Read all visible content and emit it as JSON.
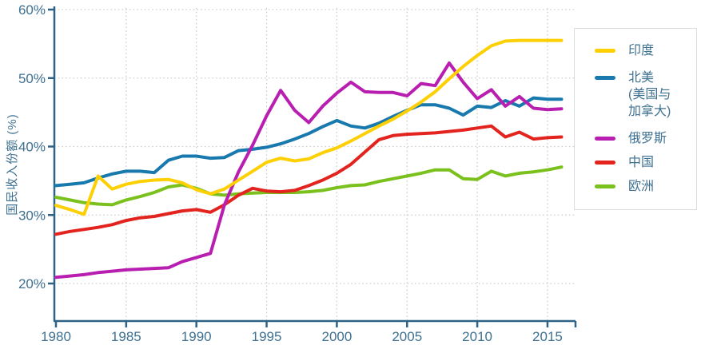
{
  "chart": {
    "y_axis_title": "国民收入份额 (%)",
    "y_ticks": [
      {
        "label": "60%",
        "value": 60
      },
      {
        "label": "50%",
        "value": 50
      },
      {
        "label": "40%",
        "value": 40
      },
      {
        "label": "30%",
        "value": 30
      },
      {
        "label": "20%",
        "value": 20
      }
    ],
    "x_ticks": [
      {
        "label": "1980",
        "value": 1980
      },
      {
        "label": "1985",
        "value": 1985
      },
      {
        "label": "1990",
        "value": 1990
      },
      {
        "label": "1995",
        "value": 1995
      },
      {
        "label": "2000",
        "value": 2000
      },
      {
        "label": "2005",
        "value": 2005
      },
      {
        "label": "2010",
        "value": 2010
      },
      {
        "label": "2015",
        "value": 2015
      }
    ]
  },
  "legend": {
    "items": [
      {
        "label": "印度",
        "slug": "india"
      },
      {
        "label": "北美\n(美国与\n加拿大)",
        "slug": "north-america"
      },
      {
        "label": "俄罗斯",
        "slug": "russia"
      },
      {
        "label": "中国",
        "slug": "china"
      },
      {
        "label": "欧洲",
        "slug": "europe"
      }
    ]
  },
  "colors": {
    "axis": "#2e6286",
    "text": "#3f7191",
    "grid": "#c8ccce",
    "legend_border": "#dadde0",
    "background": "#ffffff"
  },
  "chart_data": {
    "type": "line",
    "title": "",
    "xlabel": "",
    "ylabel": "国民收入份额 (%)",
    "xlim": [
      1980,
      2016
    ],
    "ylim": [
      15,
      60
    ],
    "grid": "dotted",
    "legend_position": "right",
    "x": [
      1980,
      1981,
      1982,
      1983,
      1984,
      1985,
      1986,
      1987,
      1988,
      1989,
      1990,
      1991,
      1992,
      1993,
      1994,
      1995,
      1996,
      1997,
      1998,
      1999,
      2000,
      2001,
      2002,
      2003,
      2004,
      2005,
      2006,
      2007,
      2008,
      2009,
      2010,
      2011,
      2012,
      2013,
      2014,
      2015,
      2016
    ],
    "series": [
      {
        "name": "印度",
        "slug": "india",
        "color": "#fdd005",
        "values": [
          31.4,
          30.8,
          30.1,
          35.7,
          33.8,
          34.5,
          34.9,
          35.1,
          35.2,
          34.7,
          33.7,
          33.1,
          33.8,
          35.1,
          36.4,
          37.7,
          38.3,
          37.9,
          38.2,
          39.1,
          39.8,
          40.8,
          41.9,
          43.0,
          44.0,
          45.2,
          46.5,
          48.0,
          49.9,
          51.7,
          53.3,
          54.7,
          55.4,
          55.5,
          55.5,
          55.5,
          55.5
        ]
      },
      {
        "name": "北美 (美国与加拿大)",
        "slug": "north-america",
        "color": "#1779ad",
        "values": [
          34.3,
          34.5,
          34.7,
          35.4,
          36.0,
          36.4,
          36.4,
          36.2,
          38.0,
          38.6,
          38.6,
          38.3,
          38.4,
          39.4,
          39.6,
          39.9,
          40.4,
          41.1,
          41.9,
          42.9,
          43.8,
          43.0,
          42.7,
          43.4,
          44.4,
          45.3,
          46.1,
          46.1,
          45.6,
          44.6,
          45.9,
          45.7,
          46.7,
          45.9,
          47.1,
          46.9,
          46.9
        ]
      },
      {
        "name": "俄罗斯",
        "slug": "russia",
        "color": "#b81fb0",
        "values": [
          20.9,
          21.1,
          21.3,
          21.6,
          21.8,
          22.0,
          22.1,
          22.2,
          22.3,
          23.2,
          23.8,
          24.4,
          31.5,
          36.3,
          40.2,
          44.5,
          48.2,
          45.3,
          43.5,
          45.9,
          47.8,
          49.4,
          48.0,
          47.9,
          47.9,
          47.4,
          49.2,
          48.9,
          52.2,
          49.4,
          47.0,
          48.3,
          45.9,
          47.3,
          45.6,
          45.4,
          45.5
        ]
      },
      {
        "name": "中国",
        "slug": "china",
        "color": "#e2231e",
        "values": [
          27.2,
          27.6,
          27.9,
          28.2,
          28.6,
          29.2,
          29.6,
          29.8,
          30.2,
          30.6,
          30.8,
          30.4,
          31.5,
          32.9,
          33.9,
          33.5,
          33.4,
          33.6,
          34.3,
          35.1,
          36.1,
          37.4,
          39.2,
          41.0,
          41.6,
          41.8,
          41.9,
          42.0,
          42.2,
          42.4,
          42.7,
          43.0,
          41.4,
          42.1,
          41.1,
          41.3,
          41.4
        ]
      },
      {
        "name": "欧洲",
        "slug": "europe",
        "color": "#7ac11d",
        "values": [
          32.6,
          32.2,
          31.8,
          31.6,
          31.5,
          32.2,
          32.7,
          33.3,
          34.1,
          34.4,
          33.9,
          33.1,
          32.9,
          33.1,
          33.2,
          33.3,
          33.3,
          33.3,
          33.4,
          33.6,
          34.0,
          34.3,
          34.4,
          34.9,
          35.3,
          35.7,
          36.1,
          36.6,
          36.6,
          35.3,
          35.2,
          36.4,
          35.7,
          36.1,
          36.3,
          36.6,
          37.0
        ]
      }
    ]
  }
}
